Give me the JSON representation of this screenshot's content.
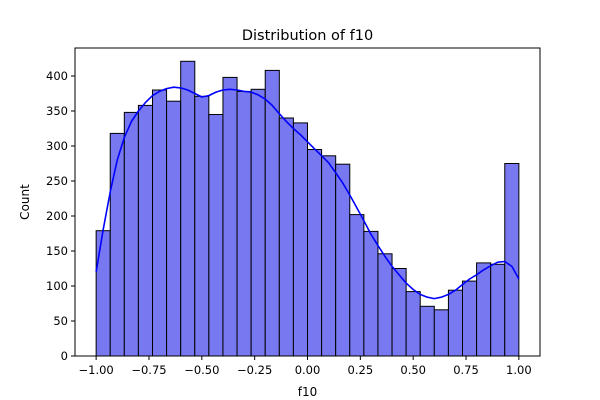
{
  "chart_data": {
    "type": "bar",
    "title": "Distribution of f10",
    "xlabel": "f10",
    "ylabel": "Count",
    "xlim": [
      -1.1,
      1.1
    ],
    "ylim": [
      0,
      440
    ],
    "x_ticks": [
      -1.0,
      -0.75,
      -0.5,
      -0.25,
      0.0,
      0.25,
      0.5,
      0.75,
      1.0
    ],
    "x_tick_labels": [
      "−1.00",
      "−0.75",
      "−0.50",
      "−0.25",
      "0.00",
      "0.25",
      "0.50",
      "0.75",
      "1.00"
    ],
    "y_ticks": [
      0,
      50,
      100,
      150,
      200,
      250,
      300,
      350,
      400
    ],
    "y_tick_labels": [
      "0",
      "50",
      "100",
      "150",
      "200",
      "250",
      "300",
      "350",
      "400"
    ],
    "bin_edges": [
      -1.0,
      -0.9333,
      -0.8667,
      -0.8,
      -0.7333,
      -0.6667,
      -0.6,
      -0.5333,
      -0.4667,
      -0.4,
      -0.3333,
      -0.2667,
      -0.2,
      -0.1333,
      -0.0667,
      0.0,
      0.0667,
      0.1333,
      0.2,
      0.2667,
      0.3333,
      0.4,
      0.4667,
      0.5333,
      0.6,
      0.6667,
      0.7333,
      0.8,
      0.8667,
      0.9333,
      1.0
    ],
    "values": [
      179,
      318,
      348,
      358,
      380,
      364,
      421,
      371,
      345,
      398,
      378,
      381,
      408,
      340,
      333,
      295,
      286,
      274,
      202,
      178,
      146,
      125,
      92,
      71,
      66,
      94,
      107,
      133,
      131,
      275
    ],
    "kde": {
      "x": [
        -1.0,
        -0.967,
        -0.933,
        -0.9,
        -0.867,
        -0.833,
        -0.8,
        -0.767,
        -0.733,
        -0.7,
        -0.667,
        -0.633,
        -0.6,
        -0.567,
        -0.533,
        -0.5,
        -0.467,
        -0.433,
        -0.4,
        -0.367,
        -0.333,
        -0.3,
        -0.267,
        -0.233,
        -0.2,
        -0.167,
        -0.133,
        -0.1,
        -0.067,
        -0.033,
        0.0,
        0.033,
        0.067,
        0.1,
        0.133,
        0.167,
        0.2,
        0.233,
        0.267,
        0.3,
        0.333,
        0.367,
        0.4,
        0.433,
        0.467,
        0.5,
        0.533,
        0.567,
        0.6,
        0.633,
        0.667,
        0.7,
        0.733,
        0.767,
        0.8,
        0.833,
        0.867,
        0.9,
        0.933,
        0.967,
        1.0
      ],
      "y": [
        120,
        180,
        235,
        280,
        312,
        335,
        350,
        362,
        372,
        378,
        382,
        384,
        383,
        380,
        375,
        370,
        372,
        377,
        380,
        381,
        380,
        378,
        377,
        373,
        367,
        358,
        346,
        335,
        325,
        316,
        306,
        296,
        286,
        276,
        262,
        247,
        230,
        212,
        193,
        174,
        158,
        142,
        128,
        116,
        104,
        95,
        88,
        84,
        82,
        84,
        88,
        94,
        102,
        110,
        116,
        123,
        129,
        134,
        135,
        128,
        110
      ]
    },
    "colors": {
      "bar_fill": "#7878f0",
      "bar_edge": "#000000",
      "kde_line": "#0000ff"
    },
    "grid": false,
    "legend": "none"
  }
}
